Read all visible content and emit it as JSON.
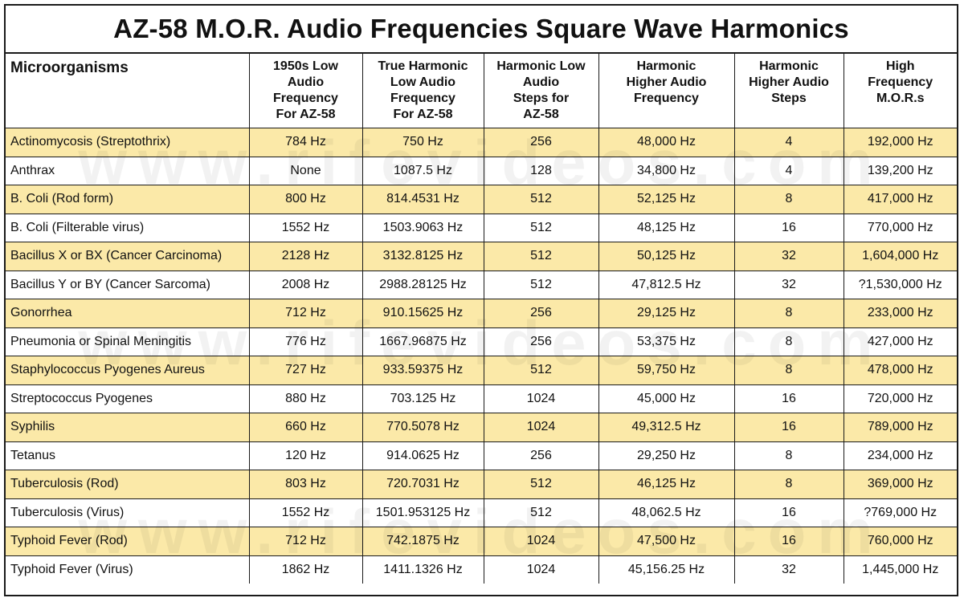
{
  "title": "AZ-58 M.O.R. Audio Frequencies Square Wave Harmonics",
  "watermark": "www.rifevideos.com",
  "columns": [
    "Microorganisms",
    "1950s Low\nAudio\nFrequency\nFor AZ-58",
    "True Harmonic\nLow Audio\nFrequency\nFor AZ-58",
    "Harmonic Low\nAudio\nSteps for\nAZ-58",
    "Harmonic\nHigher Audio\nFrequency",
    "Harmonic\nHigher Audio\nSteps",
    "High\nFrequency\nM.O.R.s"
  ],
  "rows": [
    [
      "Actinomycosis (Streptothrix)",
      "784 Hz",
      "750 Hz",
      "256",
      "48,000 Hz",
      "4",
      "192,000 Hz"
    ],
    [
      "Anthrax",
      "None",
      "1087.5 Hz",
      "128",
      "34,800 Hz",
      "4",
      "139,200 Hz"
    ],
    [
      "B. Coli (Rod form)",
      "800 Hz",
      "814.4531 Hz",
      "512",
      "52,125 Hz",
      "8",
      "417,000 Hz"
    ],
    [
      "B. Coli (Filterable virus)",
      "1552 Hz",
      "1503.9063 Hz",
      "512",
      "48,125 Hz",
      "16",
      "770,000 Hz"
    ],
    [
      "Bacillus X or BX (Cancer Carcinoma)",
      "2128 Hz",
      "3132.8125 Hz",
      "512",
      "50,125 Hz",
      "32",
      "1,604,000 Hz"
    ],
    [
      "Bacillus Y or BY (Cancer Sarcoma)",
      "2008 Hz",
      "2988.28125 Hz",
      "512",
      "47,812.5 Hz",
      "32",
      "?1,530,000 Hz"
    ],
    [
      "Gonorrhea",
      "712 Hz",
      "910.15625 Hz",
      "256",
      "29,125 Hz",
      "8",
      "233,000 Hz"
    ],
    [
      "Pneumonia or Spinal Meningitis",
      "776 Hz",
      "1667.96875 Hz",
      "256",
      "53,375 Hz",
      "8",
      "427,000 Hz"
    ],
    [
      "Staphylococcus Pyogenes Aureus",
      "727 Hz",
      "933.59375 Hz",
      "512",
      "59,750 Hz",
      "8",
      "478,000 Hz"
    ],
    [
      "Streptococcus Pyogenes",
      "880 Hz",
      "703.125 Hz",
      "1024",
      "45,000 Hz",
      "16",
      "720,000 Hz"
    ],
    [
      "Syphilis",
      "660 Hz",
      "770.5078 Hz",
      "1024",
      "49,312.5 Hz",
      "16",
      "789,000 Hz"
    ],
    [
      "Tetanus",
      "120 Hz",
      "914.0625 Hz",
      "256",
      "29,250 Hz",
      "8",
      "234,000 Hz"
    ],
    [
      "Tuberculosis (Rod)",
      "803 Hz",
      "720.7031 Hz",
      "512",
      "46,125 Hz",
      "8",
      "369,000 Hz"
    ],
    [
      "Tuberculosis (Virus)",
      "1552 Hz",
      "1501.953125 Hz",
      "512",
      "48,062.5 Hz",
      "16",
      "?769,000 Hz"
    ],
    [
      "Typhoid Fever (Rod)",
      "712 Hz",
      "742.1875 Hz",
      "1024",
      "47,500 Hz",
      "16",
      "760,000 Hz"
    ],
    [
      "Typhoid Fever (Virus)",
      "1862 Hz",
      "1411.1326 Hz",
      "1024",
      "45,156.25 Hz",
      "32",
      "1,445,000 Hz"
    ]
  ],
  "shaded_rows": [
    0,
    2,
    4,
    6,
    8,
    10,
    12,
    14
  ],
  "colors": {
    "row_shade": "#fbe9a8",
    "border": "#1a1a1a",
    "background": "#ffffff"
  }
}
